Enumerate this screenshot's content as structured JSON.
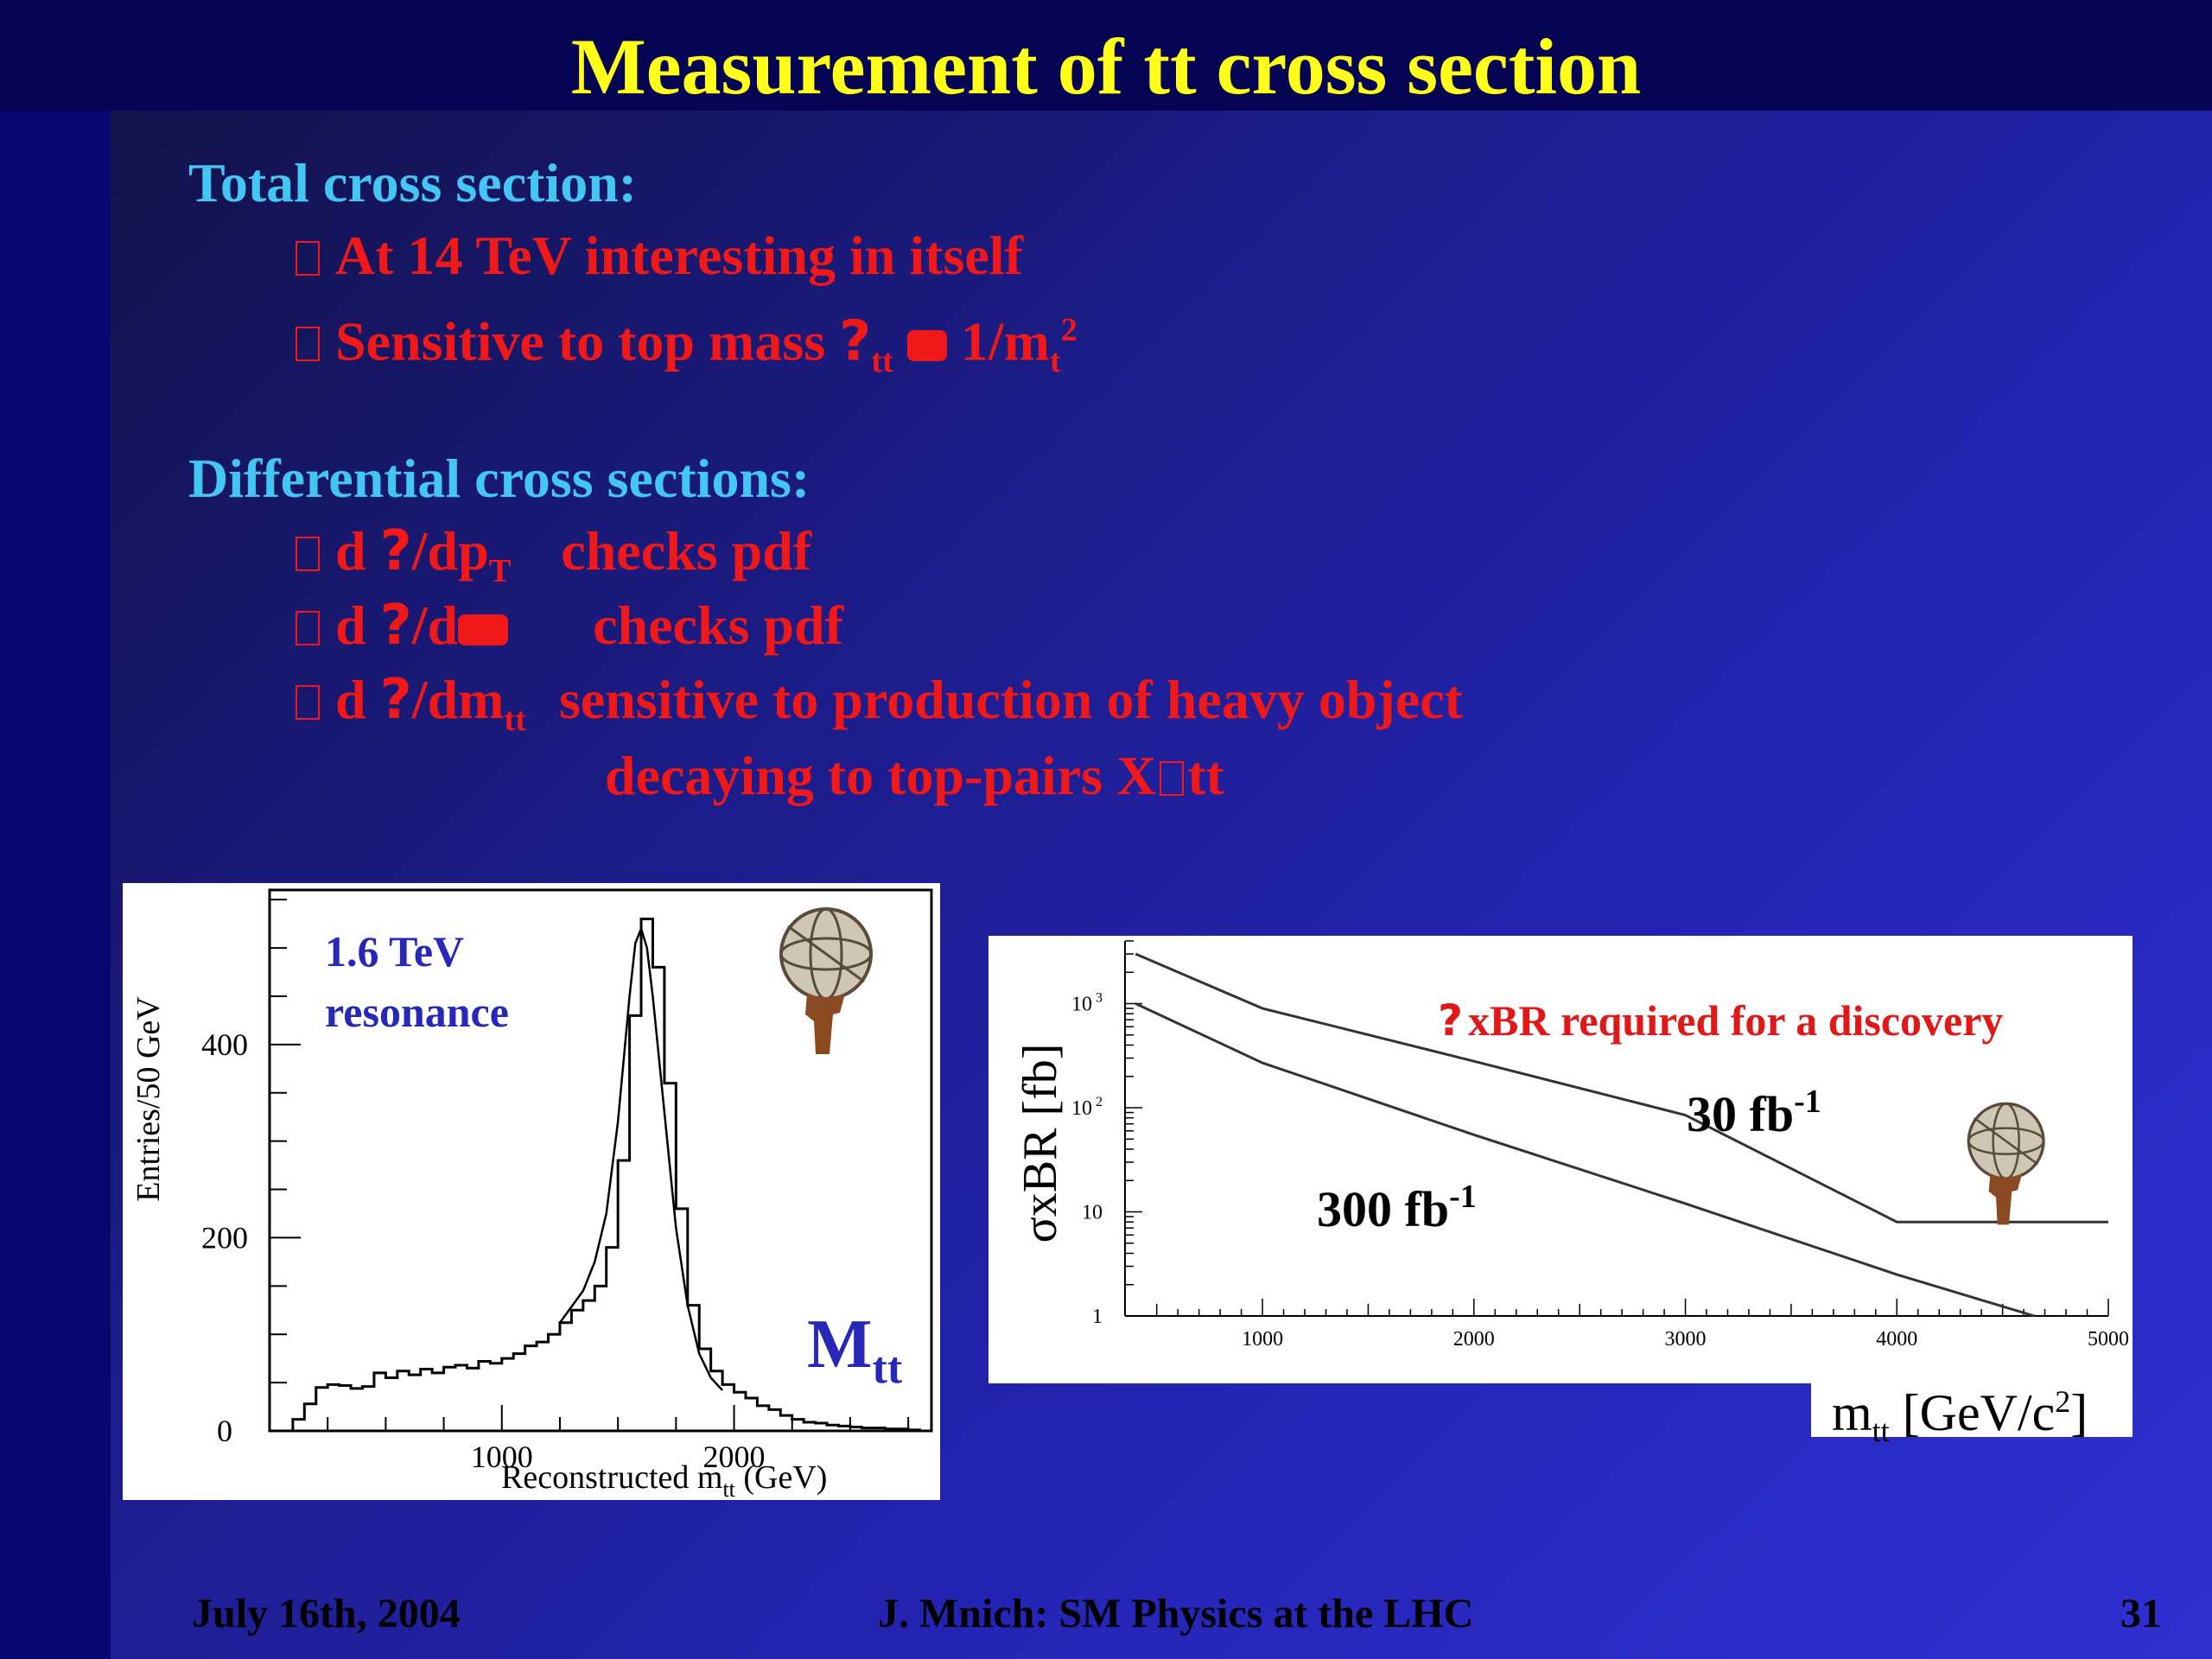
{
  "slide": {
    "title": "Measurement of tt cross section",
    "total_heading": "Total cross section:",
    "bullet1": "At 14 TeV interesting in itself",
    "bullet2_text": "Sensitive to top mass",
    "bullet2_sigma": "?",
    "bullet2_sub": "tt",
    "bullet2_after": "1/m",
    "bullet2_sub_t": "t",
    "bullet2_sup": "2",
    "diff_heading": "Differential cross sections:",
    "d_prefix": "d",
    "q": "?",
    "b3_slash": "/dp",
    "b3_sub": "T",
    "b3_tail": "checks pdf",
    "b4_slash": "/d",
    "b4_tail": "checks pdf",
    "b5_slash": "/dm",
    "b5_sub": "tt",
    "b5_tail": "sensitive to production of heavy object",
    "b5_line2": "decaying to top-pairs X",
    "b5_line2_tail": "tt"
  },
  "footer": {
    "date": "July 16th, 2004",
    "author": "J. Mnich: SM Physics at the LHC",
    "page": "31"
  },
  "colors": {
    "title": "#ffff1a",
    "heading": "#44c6f4",
    "bullet": "#f01818",
    "panel_label": "#2828b8"
  },
  "chart_data": [
    {
      "type": "bar",
      "annotation_line1": "1.6 TeV",
      "annotation_line2": "resonance",
      "big_label": "M",
      "big_label_sub": "tt",
      "xlabel": "Reconstructed  m",
      "xlabel_sub": "tt",
      "xlabel_unit": " (GeV)",
      "ylabel": "Entries/50 GeV",
      "xlim": [
        0,
        2850
      ],
      "ylim": [
        0,
        560
      ],
      "xticks": [
        1000,
        2000
      ],
      "yticks": [
        0,
        200,
        400
      ],
      "bin_width": 50,
      "x": [
        100,
        150,
        200,
        250,
        300,
        350,
        400,
        450,
        500,
        550,
        600,
        650,
        700,
        750,
        800,
        850,
        900,
        950,
        1000,
        1050,
        1100,
        1150,
        1200,
        1250,
        1300,
        1350,
        1400,
        1450,
        1500,
        1550,
        1600,
        1650,
        1700,
        1750,
        1800,
        1850,
        1900,
        1950,
        2000,
        2050,
        2100,
        2150,
        2200,
        2250,
        2300,
        2350,
        2400,
        2450,
        2500,
        2550,
        2600,
        2650,
        2700,
        2750
      ],
      "values": [
        12,
        28,
        45,
        48,
        47,
        44,
        46,
        60,
        55,
        62,
        58,
        64,
        60,
        66,
        68,
        65,
        72,
        70,
        75,
        80,
        88,
        92,
        100,
        112,
        125,
        135,
        150,
        190,
        280,
        430,
        530,
        480,
        360,
        230,
        130,
        85,
        62,
        48,
        40,
        34,
        26,
        22,
        16,
        12,
        9,
        8,
        6,
        5,
        4,
        3,
        3,
        2,
        2,
        1
      ],
      "fit_x": [
        1250,
        1350,
        1400,
        1450,
        1500,
        1550,
        1575,
        1600,
        1625,
        1650,
        1700,
        1750,
        1800,
        1850,
        1900,
        1950
      ],
      "fit_values": [
        112,
        145,
        175,
        225,
        320,
        450,
        505,
        520,
        500,
        450,
        330,
        210,
        130,
        80,
        55,
        42
      ]
    },
    {
      "type": "line",
      "annotation_symbol": "?",
      "annotation": "xBR required for a discovery",
      "xlabel": "m",
      "xlabel_sub": "tt",
      "xlabel_unit": " [GeV/c",
      "xlabel_sup": "2",
      "xlabel_close": "]",
      "ylabel": "σxBR [fb]",
      "xlim": [
        350,
        5000
      ],
      "ylim": [
        1,
        4000
      ],
      "yscale": "log",
      "xticks": [
        1000,
        2000,
        3000,
        4000,
        5000
      ],
      "yticks": [
        {
          "value": 1,
          "base": "1",
          "exp": ""
        },
        {
          "value": 10,
          "base": "10",
          "exp": ""
        },
        {
          "value": 100,
          "base": "10",
          "exp": "2"
        },
        {
          "value": 1000,
          "base": "10",
          "exp": "3"
        }
      ],
      "series": [
        {
          "name": "30 fb",
          "name_sup": "-1",
          "x": [
            400,
            1000,
            2000,
            3000,
            4000,
            5000
          ],
          "values": [
            3000,
            900,
            280,
            85,
            8,
            8
          ]
        },
        {
          "name": "300 fb",
          "name_sup": "-1",
          "x": [
            400,
            1000,
            2000,
            3000,
            4000,
            4650
          ],
          "values": [
            1000,
            270,
            55,
            12,
            2.5,
            1
          ]
        }
      ]
    }
  ]
}
